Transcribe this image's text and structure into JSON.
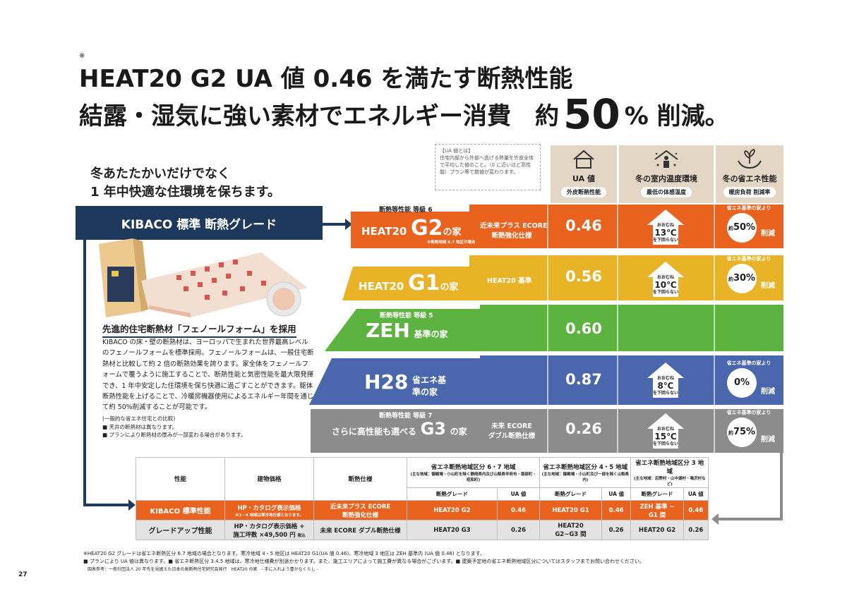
{
  "headline": {
    "mark": "※",
    "line1": "HEAT20 G2 UA 値 0.46 を満たす断熱性能",
    "line2_pre": "結露・湿気に強い素材でエネルギー消費　約",
    "line2_big": "50",
    "line2_post": "% 削減。"
  },
  "lead": {
    "line1": "冬あたたかいだけでなく",
    "line2": "1 年中快適な住環境を保ちます。"
  },
  "kibaco_grade": "KIBACO 標準 断熱グレード",
  "feature": {
    "title": "先進的住宅断熱材「フェノールフォーム」を採用",
    "body": "KIBACO の床・壁の断熱材は、ヨーロッパで生まれた世界最高レベルのフェノールフォームを標準採用。フェノールフォームは、一般住宅断熱材と比較して約 2 倍の断熱効果を誇ります。家全体をフェノールフォームで覆うように施工することで、断熱性能と気密性能を最大限発揮でき、1 年中安定した住環境を保ち快適に過ごすことができます。躯体断熱性能を上げることで、冷暖房機器使用によるエネルギー年間を通じて約 50%削減することが可能です。",
    "small": "(一般的な省エネ住宅との比較)",
    "note1": "■ 天井の断熱材は異なります。",
    "note2": "■ プランにより断熱材の厚みが一部変わる場合があります。"
  },
  "ua_note": {
    "title": "【UA 値とは】",
    "text": "住宅内部から外部へ逃げる熱量を外皮全体で平均した値のこと。（0 に近いほど高性能）プラン等で数値が変わります。"
  },
  "columns": [
    {
      "title": "UA 値",
      "sub": "外皮断熱性能",
      "icon": "house-outline-icon"
    },
    {
      "title": "冬の室内温度環境",
      "sub": "最低の体感温度",
      "icon": "person-sparkle-icon"
    },
    {
      "title": "冬の省エネ性能",
      "sub": "暖房負荷 削減率",
      "icon": "plant-hands-icon"
    }
  ],
  "tiers": [
    {
      "id": "g2",
      "grade": "断熱等性能 等級 6",
      "name_pre": "HEAT20",
      "name_big": "G2",
      "name_post": "の家",
      "note": "※断熱地域 6.7 地区の場合",
      "spec1": "近未来プラス ECORE",
      "spec2": "断熱強化仕様",
      "ua": "0.46",
      "temp_top": "おおむね",
      "temp": "13℃",
      "temp_bottom": "を下回らない",
      "save_cap": "省エネ基準の家より",
      "save_pre": "約",
      "save": "50%",
      "save_post": "削減",
      "color": "#e9621e"
    },
    {
      "id": "g1",
      "grade": "",
      "name_pre": "HEAT20",
      "name_big": "G1",
      "name_post": "の家",
      "note": "",
      "spec1": "HEAT20 基準",
      "spec2": "",
      "ua": "0.56",
      "temp_top": "おおむね",
      "temp": "10℃",
      "temp_bottom": "を下回らない",
      "save_cap": "省エネ基準の家より",
      "save_pre": "約",
      "save": "30%",
      "save_post": "削減",
      "color": "#e9b327"
    },
    {
      "id": "zeh",
      "grade": "断熱等性能 等級 5",
      "name_pre": "",
      "name_big": "ZEH",
      "name_post": "基準の家",
      "note": "",
      "spec1": "",
      "spec2": "",
      "ua": "0.60",
      "temp_top": "",
      "temp": "",
      "temp_bottom": "",
      "save_cap": "",
      "save_pre": "",
      "save": "",
      "save_post": "",
      "color": "#5cb340"
    },
    {
      "id": "h28",
      "grade": "",
      "name_pre": "",
      "name_big": "H28",
      "name_post": "省エネ基準の家",
      "note": "",
      "spec1": "",
      "spec2": "",
      "ua": "0.87",
      "temp_top": "おおむね",
      "temp": "8℃",
      "temp_bottom": "を下回らない",
      "save_cap": "省エネ基準の家より",
      "save_pre": "",
      "save": "0%",
      "save_post": "削減",
      "color": "#4a66ad"
    },
    {
      "id": "g3",
      "grade": "断熱等性能 等級 7",
      "name_pre": "さらに高性能も選べる",
      "name_big": "G3",
      "name_post": "の家",
      "note": "",
      "spec1": "未来 ECORE",
      "spec2": "ダブル断熱仕様",
      "ua": "0.26",
      "temp_top": "おおむね",
      "temp": "15℃",
      "temp_bottom": "を下回らない",
      "save_cap": "省エネ基準の家より",
      "save_pre": "約",
      "save": "75%",
      "save_post": "削減",
      "color": "#8c8c8c"
    }
  ],
  "table": {
    "h_perf": "性能",
    "h_price": "建物価格",
    "h_spec": "断熱仕様",
    "r67_title": "省エネ断熱地域区分 6・7 地域",
    "r67_sub": "(主な地域：御殿場・小山町を除く静岡県内及び山梨県甲府市・南部町・昭和町)",
    "r45_title": "省エネ断熱地域区分 4・5 地域",
    "r45_sub": "(主な地域：御殿場・小山町及び一部を除く山梨県内)",
    "r3_title": "省エネ断熱地域区分 3 地域",
    "r3_sub": "(主な地域：忍野村・山中湖村・鳴沢村など)",
    "grade": "断熱グレード",
    "uav": "UA 値",
    "kibaco": {
      "perf": "KIBACO 標準性能",
      "price": "HP・カタログ表示価格",
      "price_note": "※3・4 地域は寒冷地仕様となります。",
      "spec1": "近未来プラス ECORE",
      "spec2": "断熱強化仕様",
      "g67": "HEAT20 G2",
      "u67": "0.46",
      "g45": "HEAT20 G1",
      "u45": "0.46",
      "g3a": "ZEH 基準 ~",
      "g3b": "G1 間",
      "u3": "0.46"
    },
    "upgrade": {
      "perf": "グレードアップ性能",
      "price1": "HP・カタログ表示価格 +",
      "price2": "施工坪数 ×49,500 円",
      "price_tax": "税込",
      "spec": "未来 ECORE ダブル断熱仕様",
      "g67": "HEAT20 G3",
      "u67": "0.26",
      "g45a": "HEAT20",
      "g45b": "G2~G3 間",
      "u45": "0.26",
      "g3": "HEAT20 G2",
      "u3": "0.26"
    }
  },
  "footnotes": [
    "※HEAT20 G2 グレードは省エネ断熱区分 6.7 地域の場合となります。寒冷地域 4・5 地区は HEAT20 G1(UA 値 0.46)、寒冷地域 3 地区は ZEH 基準内 (UA 値 0.46) となります。",
    "■ プランにより UA 値は異なります。■ 省エネ断熱区分 3.4.5 地域は、寒冷地仕様費が別途かかります。また、施工エリアによって施工費が異なる場合がございます。■ 建築予定地の省エネ断熱地域区分についてはスタッフまでお問い合わせください。",
    "図表参考：一般社団法人 20 年先を見据えた日本の高断熱住宅研究会発行　HEAT20 の家　- 手に入れよう豊かなくらし -"
  ],
  "page_number": "27"
}
